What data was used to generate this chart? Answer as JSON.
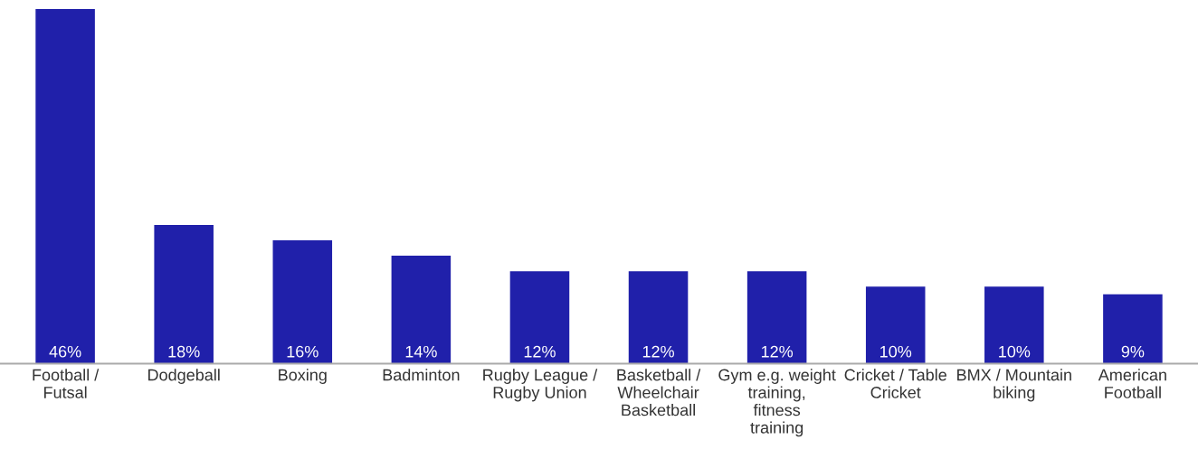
{
  "chart_data": {
    "type": "bar",
    "categories": [
      "Football / Futsal",
      "Dodgeball",
      "Boxing",
      "Badminton",
      "Rugby League / Rugby Union",
      "Basketball / Wheelchair Basketball",
      "Gym e.g. weight training, fitness training",
      "Cricket / Table Cricket",
      "BMX / Mountain biking",
      "American Football"
    ],
    "values": [
      46,
      18,
      16,
      14,
      12,
      12,
      12,
      10,
      10,
      9
    ],
    "value_labels": [
      "46%",
      "18%",
      "16%",
      "14%",
      "12%",
      "12%",
      "12%",
      "10%",
      "10%",
      "9%"
    ],
    "color": "#2020aa",
    "ylim": [
      0,
      46
    ],
    "tick_labels": "x",
    "grid": false,
    "legend": false
  }
}
